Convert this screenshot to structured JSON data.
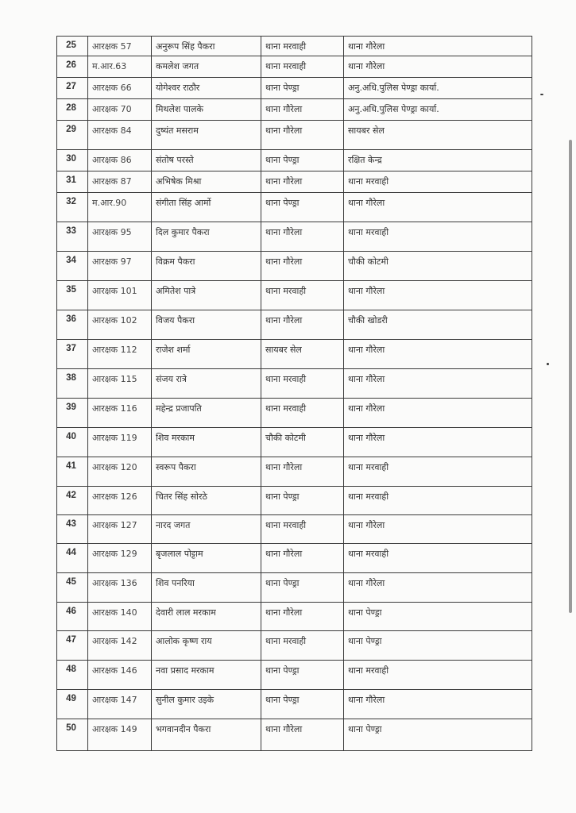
{
  "table": {
    "rows": [
      {
        "sn": "25",
        "rank": "आरक्षक 57",
        "name": "अनुरूप सिंह पैकरा",
        "from": "थाना मरवाही",
        "to": "थाना गौरेला"
      },
      {
        "sn": "26",
        "rank": "म.आर.63",
        "name": "कमलेश जगत",
        "from": "थाना मरवाही",
        "to": "थाना गौरेला"
      },
      {
        "sn": "27",
        "rank": "आरक्षक 66",
        "name": "योगेश्वर राठौर",
        "from": "थाना पेण्ड्रा",
        "to": "अनु.अधि.पुलिस पेण्ड्रा कार्या."
      },
      {
        "sn": "28",
        "rank": "आरक्षक 70",
        "name": "मिथलेश पालके",
        "from": "थाना गौरेला",
        "to": "अनु.अधि.पुलिस पेण्ड्रा कार्या."
      },
      {
        "sn": "29",
        "rank": "आरक्षक 84",
        "name": "दुष्यंत मसराम",
        "from": "थाना गौरेला",
        "to": "सायबर सेल"
      },
      {
        "sn": "30",
        "rank": "आरक्षक 86",
        "name": "संतोष परस्ते",
        "from": "थाना पेण्ड्रा",
        "to": "रक्षित केन्द्र"
      },
      {
        "sn": "31",
        "rank": "आरक्षक 87",
        "name": "अभिषेक मिश्रा",
        "from": "थाना गौरेला",
        "to": "थाना मरवाही"
      },
      {
        "sn": "32",
        "rank": "म.आर.90",
        "name": "संगीता सिंह आर्मो",
        "from": "थाना पेण्ड्रा",
        "to": "थाना गौरेला"
      },
      {
        "sn": "33",
        "rank": "आरक्षक 95",
        "name": "दिल कुमार पैकरा",
        "from": "थाना गौरेला",
        "to": "थाना मरवाही"
      },
      {
        "sn": "34",
        "rank": "आरक्षक 97",
        "name": "विक्रम पैकरा",
        "from": "थाना गौरेला",
        "to": "चौकी कोटमी"
      },
      {
        "sn": "35",
        "rank": "आरक्षक 101",
        "name": "अमितेश पात्रे",
        "from": "थाना मरवाही",
        "to": "थाना गौरेला"
      },
      {
        "sn": "36",
        "rank": "आरक्षक 102",
        "name": "विजय पैकरा",
        "from": "थाना गौरेला",
        "to": "चौकी खोडरी"
      },
      {
        "sn": "37",
        "rank": "आरक्षक 112",
        "name": "राजेश शर्मा",
        "from": "सायबर सेल",
        "to": "थाना गौरेला"
      },
      {
        "sn": "38",
        "rank": "आरक्षक 115",
        "name": "संजय रात्रे",
        "from": "थाना मरवाही",
        "to": "थाना गौरेला"
      },
      {
        "sn": "39",
        "rank": "आरक्षक 116",
        "name": "महेन्द्र प्रजापति",
        "from": "थाना मरवाही",
        "to": "थाना गौरेला"
      },
      {
        "sn": "40",
        "rank": "आरक्षक 119",
        "name": "शिव मरकाम",
        "from": "चौकी कोटमी",
        "to": "थाना गौरेला"
      },
      {
        "sn": "41",
        "rank": "आरक्षक 120",
        "name": "स्वरूप  पैकरा",
        "from": "थाना गौरेला",
        "to": "थाना मरवाही"
      },
      {
        "sn": "42",
        "rank": "आरक्षक 126",
        "name": "चितर सिंह सोरठे",
        "from": "थाना पेण्ड्रा",
        "to": "थाना मरवाही"
      },
      {
        "sn": "43",
        "rank": "आरक्षक 127",
        "name": "नारद जगत",
        "from": "थाना मरवाही",
        "to": "थाना गौरेला"
      },
      {
        "sn": "44",
        "rank": "आरक्षक 129",
        "name": "बृजलाल पोट्टाम",
        "from": "थाना गौरेला",
        "to": "थाना मरवाही"
      },
      {
        "sn": "45",
        "rank": "आरक्षक 136",
        "name": "शिव पनरिया",
        "from": "थाना पेण्ड्रा",
        "to": "थाना गौरेला"
      },
      {
        "sn": "46",
        "rank": "आरक्षक 140",
        "name": "देवारी लाल मरकाम",
        "from": "थाना गौरेला",
        "to": "थाना पेण्ड्रा"
      },
      {
        "sn": "47",
        "rank": "आरक्षक 142",
        "name": "आलोक कृष्ण राय",
        "from": "थाना मरवाही",
        "to": "थाना पेण्ड्रा"
      },
      {
        "sn": "48",
        "rank": "आरक्षक 146",
        "name": "नवा प्रसाद मरकाम",
        "from": "थाना पेण्ड्रा",
        "to": "थाना मरवाही"
      },
      {
        "sn": "49",
        "rank": "आरक्षक 147",
        "name": "सुनील कुमार उइके",
        "from": "थाना पेण्ड्रा",
        "to": "थाना गौरेला"
      },
      {
        "sn": "50",
        "rank": "आरक्षक 149",
        "name": "भगवानदीन पैकरा",
        "from": "थाना गौरेला",
        "to": "थाना पेण्ड्रा"
      }
    ]
  }
}
